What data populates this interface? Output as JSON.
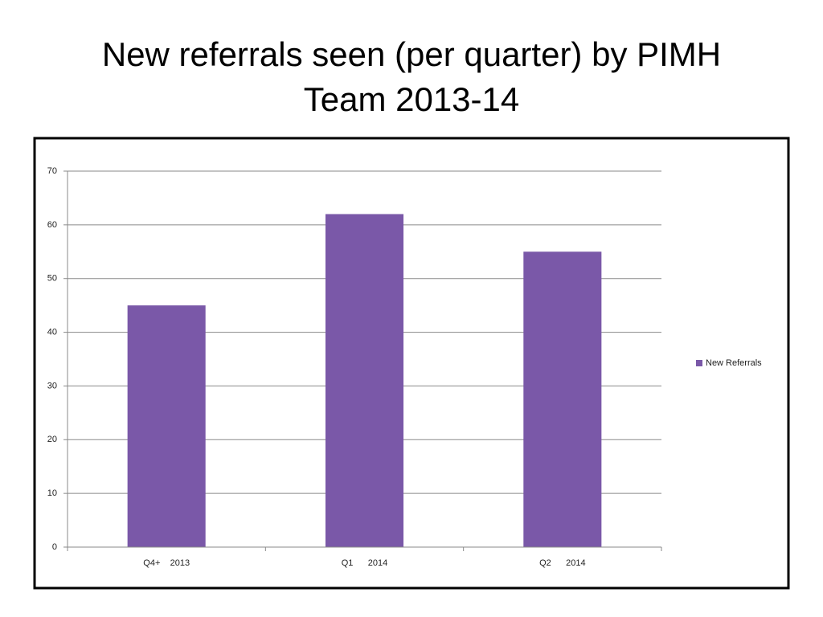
{
  "chart_data": {
    "type": "bar",
    "title": "New referrals seen (per quarter) by PIMH Team 2013-14",
    "categories": [
      "Q4+    2013",
      "Q1      2014",
      "Q2      2014"
    ],
    "series": [
      {
        "name": "New Referrals",
        "color": "#7a58a8",
        "values": [
          45,
          62,
          55
        ]
      }
    ],
    "ylim": [
      0,
      70
    ],
    "yticks": [
      0,
      10,
      20,
      30,
      40,
      50,
      60,
      70
    ],
    "grid": true,
    "legend": "right"
  }
}
